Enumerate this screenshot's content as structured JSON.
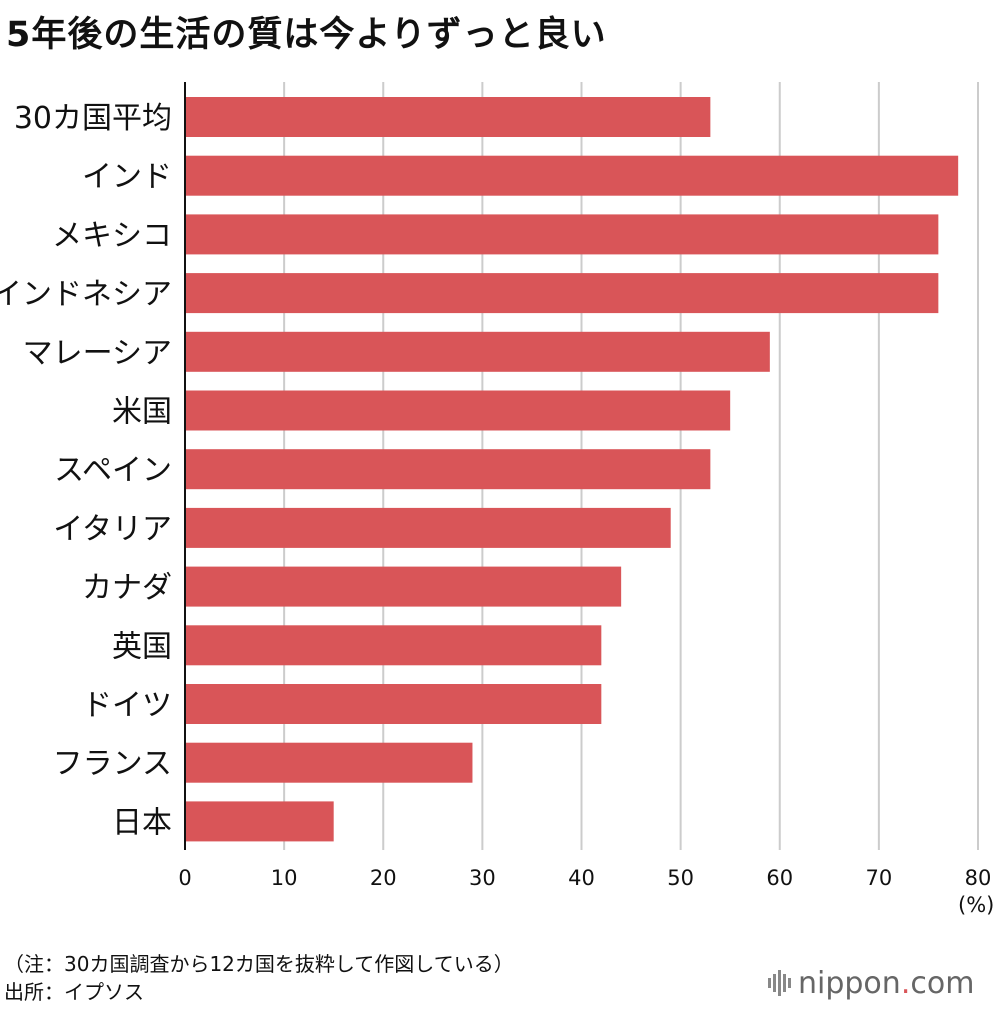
{
  "title": "5年後の生活の質は今よりずっと良い",
  "unit_label": "(%)",
  "note": "（注：30カ国調査から12カ国を抜粋して作図している）",
  "source": "出所：イプソス",
  "logo": {
    "name": "nippon",
    "dot": ".",
    "suffix": "com"
  },
  "colors": {
    "bar": "#d95558",
    "grid": "#cccccc",
    "axis": "#111111",
    "logo_dot": "#d95558"
  },
  "chart_data": {
    "type": "bar",
    "orientation": "horizontal",
    "categories": [
      "30カ国平均",
      "インド",
      "メキシコ",
      "インドネシア",
      "マレーシア",
      "米国",
      "スペイン",
      "イタリア",
      "カナダ",
      "英国",
      "ドイツ",
      "フランス",
      "日本"
    ],
    "values": [
      53,
      78,
      76,
      76,
      59,
      55,
      53,
      49,
      44,
      42,
      42,
      29,
      15
    ],
    "xlim": [
      0,
      80
    ],
    "xticks": [
      0,
      10,
      20,
      30,
      40,
      50,
      60,
      70,
      80
    ],
    "grid": true
  }
}
